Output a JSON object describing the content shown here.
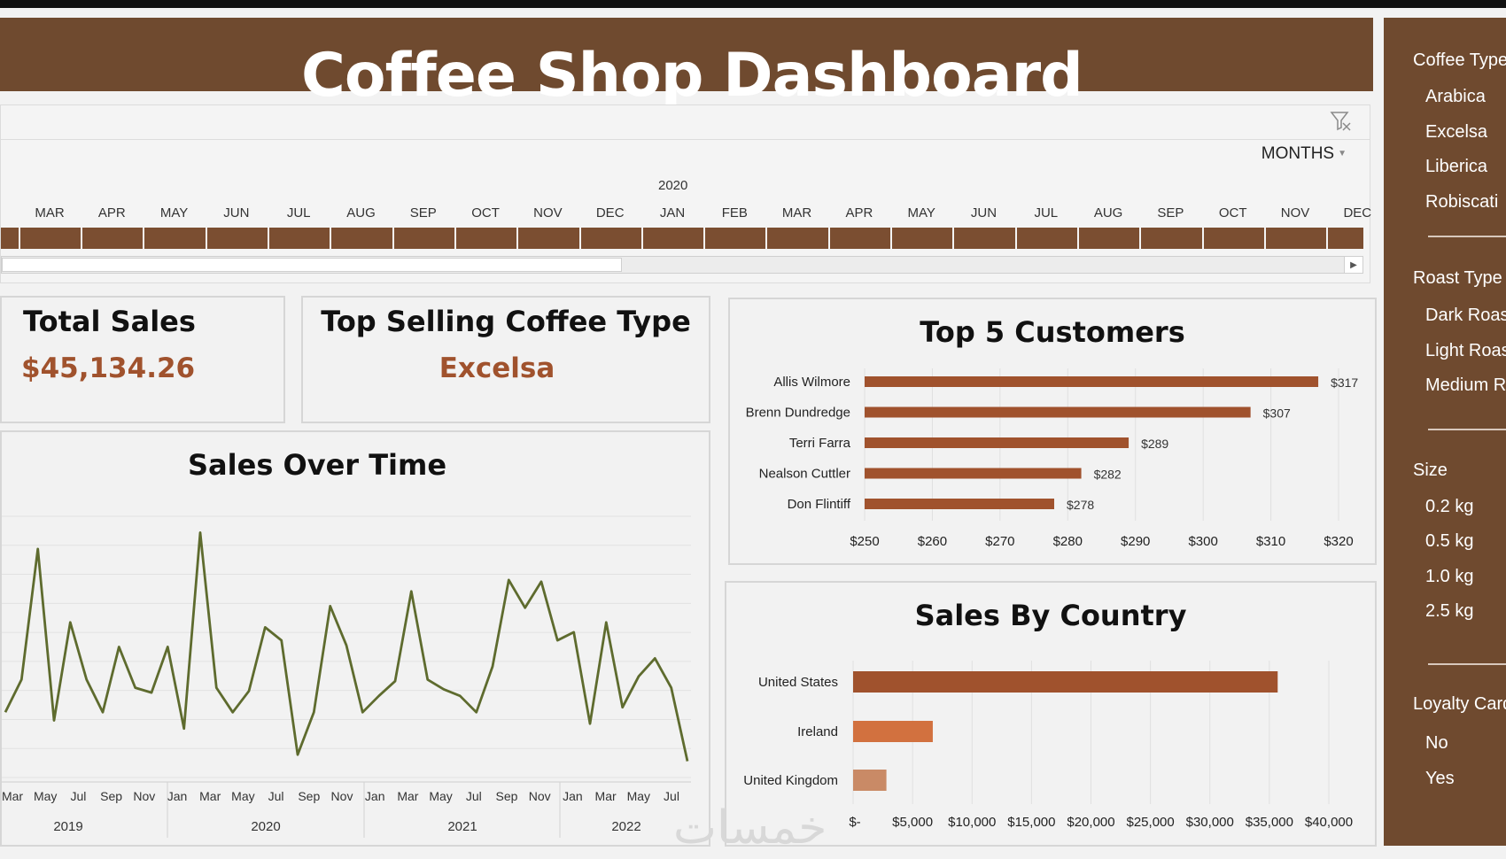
{
  "dashboard": {
    "title": "Coffee Shop Dashboard"
  },
  "timeline": {
    "period_label": "MONTHS",
    "year_label": "2020",
    "months": [
      "MAR",
      "APR",
      "MAY",
      "JUN",
      "JUL",
      "AUG",
      "SEP",
      "OCT",
      "NOV",
      "DEC",
      "JAN",
      "FEB",
      "MAR",
      "APR",
      "MAY",
      "JUN",
      "JUL",
      "AUG",
      "SEP",
      "OCT",
      "NOV",
      "DEC"
    ]
  },
  "kpis": {
    "total_sales": {
      "label": "Total Sales",
      "value": "$45,134.26"
    },
    "top_coffee": {
      "label": "Top Selling Coffee Type",
      "value": "Excelsa"
    }
  },
  "sales_over_time": {
    "title": "Sales Over Time",
    "chart_data": {
      "type": "line",
      "color": "#5e6b2e",
      "x_month_labels": [
        "Mar",
        "May",
        "Jul",
        "Sep",
        "Nov",
        "Jan",
        "Mar",
        "May",
        "Jul",
        "Sep",
        "Nov",
        "Jan",
        "Mar",
        "May",
        "Jul",
        "Sep",
        "Nov",
        "Jan",
        "Mar",
        "May",
        "Jul"
      ],
      "x_year_labels": [
        "2019",
        "2020",
        "2021",
        "2022"
      ],
      "values": [
        40,
        60,
        140,
        35,
        95,
        60,
        40,
        80,
        55,
        52,
        80,
        30,
        150,
        55,
        40,
        53,
        92,
        84,
        14,
        40,
        105,
        81,
        40,
        50,
        59,
        114,
        60,
        54,
        50,
        40,
        68,
        121,
        104,
        120,
        84,
        89,
        33,
        95,
        43,
        62,
        73,
        55,
        10
      ]
    }
  },
  "top_customers": {
    "title": "Top 5 Customers",
    "chart_data": {
      "type": "bar",
      "orientation": "horizontal",
      "categories": [
        "Allis Wilmore",
        "Brenn Dundredge",
        "Terri Farra",
        "Nealson Cuttler",
        "Don Flintiff"
      ],
      "values": [
        317,
        307,
        289,
        282,
        278
      ],
      "data_labels": [
        "$317",
        "$307",
        "$289",
        "$282",
        "$278"
      ],
      "xlim": [
        250,
        320
      ],
      "x_ticks": [
        "$250",
        "$260",
        "$270",
        "$280",
        "$290",
        "$300",
        "$310",
        "$320"
      ],
      "color": "#a0522d"
    }
  },
  "sales_by_country": {
    "title": "Sales By Country",
    "chart_data": {
      "type": "bar",
      "orientation": "horizontal",
      "categories": [
        "United States",
        "Ireland",
        "United Kingdom"
      ],
      "values": [
        35700,
        6700,
        2800
      ],
      "colors": [
        "#a0522d",
        "#d2713f",
        "#c98a66"
      ],
      "xlim": [
        0,
        40000
      ],
      "x_ticks": [
        "$-",
        "$5,000",
        "$10,000",
        "$15,000",
        "$20,000",
        "$25,000",
        "$30,000",
        "$35,000",
        "$40,000"
      ]
    }
  },
  "slicers": {
    "coffee_type": {
      "title": "Coffee Type",
      "items": [
        "Arabica",
        "Excelsa",
        "Liberica",
        "Robiscati"
      ]
    },
    "roast_type": {
      "title": "Roast Type",
      "items": [
        "Dark Roast",
        "Light Roast",
        "Medium Roast"
      ]
    },
    "size": {
      "title": "Size",
      "items": [
        "0.2 kg",
        "0.5 kg",
        "1.0 kg",
        "2.5 kg"
      ]
    },
    "loyalty": {
      "title": "Loyalty Card",
      "items": [
        "No",
        "Yes"
      ]
    }
  },
  "watermark": "خمسات"
}
